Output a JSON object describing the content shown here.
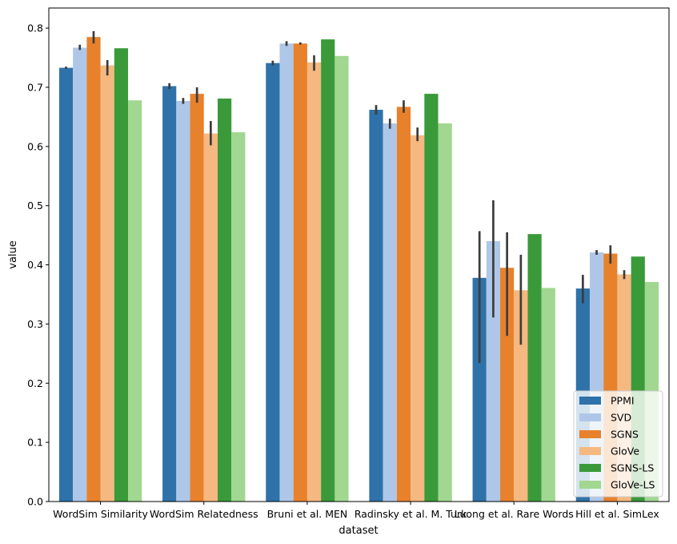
{
  "chart_data": {
    "type": "bar",
    "xlabel": "dataset",
    "ylabel": "value",
    "ylim": [
      0,
      0.834
    ],
    "yticks": [
      "0.0",
      "0.1",
      "0.2",
      "0.3",
      "0.4",
      "0.5",
      "0.6",
      "0.7",
      "0.8"
    ],
    "legend_position": "lower-right",
    "categories": [
      "WordSim Similarity",
      "WordSim Relatedness",
      "Bruni et al. MEN",
      "Radinsky et al. M. Turk",
      "Luong et al. Rare Words",
      "Hill et al. SimLex"
    ],
    "series": [
      {
        "name": "PPMI",
        "color": "#2e72a9",
        "values": [
          0.733,
          0.702,
          0.741,
          0.662,
          0.378,
          0.36
        ],
        "error": [
          [
            0.731,
            0.735
          ],
          [
            0.697,
            0.707
          ],
          [
            0.737,
            0.745
          ],
          [
            0.654,
            0.67
          ],
          [
            0.234,
            0.457
          ],
          [
            0.335,
            0.383
          ]
        ]
      },
      {
        "name": "SVD",
        "color": "#aec7e8",
        "values": [
          0.767,
          0.677,
          0.774,
          0.639,
          0.44,
          0.421
        ],
        "error": [
          [
            0.763,
            0.772
          ],
          [
            0.672,
            0.682
          ],
          [
            0.77,
            0.778
          ],
          [
            0.63,
            0.647
          ],
          [
            0.311,
            0.509
          ],
          [
            0.417,
            0.425
          ]
        ]
      },
      {
        "name": "SGNS",
        "color": "#e8812c",
        "values": [
          0.785,
          0.689,
          0.774,
          0.667,
          0.395,
          0.419
        ],
        "error": [
          [
            0.774,
            0.795
          ],
          [
            0.674,
            0.7
          ],
          [
            0.772,
            0.776
          ],
          [
            0.657,
            0.678
          ],
          [
            0.28,
            0.455
          ],
          [
            0.402,
            0.433
          ]
        ]
      },
      {
        "name": "GloVe",
        "color": "#f5b880",
        "values": [
          0.737,
          0.622,
          0.742,
          0.619,
          0.357,
          0.384
        ],
        "error": [
          [
            0.72,
            0.746
          ],
          [
            0.602,
            0.643
          ],
          [
            0.728,
            0.754
          ],
          [
            0.609,
            0.632
          ],
          [
            0.265,
            0.417
          ],
          [
            0.376,
            0.391
          ]
        ]
      },
      {
        "name": "SGNS-LS",
        "color": "#3a9a3a",
        "values": [
          0.766,
          0.681,
          0.781,
          0.689,
          0.452,
          0.414
        ],
        "error": null
      },
      {
        "name": "GloVe-LS",
        "color": "#a1d790",
        "values": [
          0.678,
          0.624,
          0.753,
          0.639,
          0.361,
          0.371
        ],
        "error": null
      }
    ]
  }
}
